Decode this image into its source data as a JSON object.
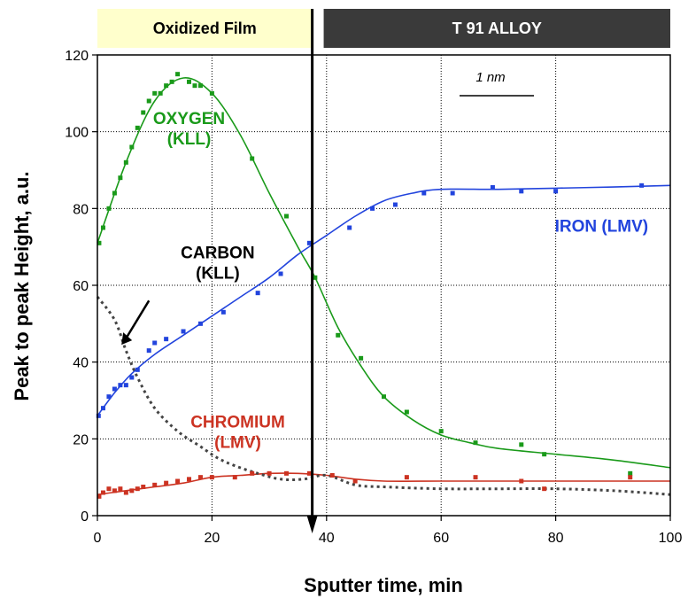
{
  "chart_data": {
    "type": "line",
    "xlabel": "Sputter time, min",
    "ylabel": "Peak to peak Height, a.u.",
    "xlim": [
      0,
      100
    ],
    "ylim": [
      0,
      120
    ],
    "x_ticks": [
      "0",
      "20",
      "40",
      "60",
      "80",
      "100"
    ],
    "y_ticks": [
      "0",
      "20",
      "40",
      "60",
      "80",
      "100",
      "120"
    ],
    "grid": true,
    "regions": [
      {
        "label": "Oxidized Film",
        "x_range": [
          0,
          37.5
        ],
        "fill": "#ffffcc",
        "text_color": "#000000"
      },
      {
        "label": "T 91 ALLOY",
        "x_range": [
          39.5,
          100
        ],
        "fill": "#3a3a3a",
        "text_color": "#ffffff"
      }
    ],
    "interface_line_x": 37.5,
    "scale_bar": {
      "label": "1 nm"
    },
    "series": [
      {
        "name": "OXYGEN (KLL)",
        "label_lines": [
          "OXYGEN",
          "(KLL)"
        ],
        "color": "#1a9a1a",
        "points": [
          [
            0.3,
            71
          ],
          [
            1,
            75
          ],
          [
            2,
            80
          ],
          [
            3,
            84
          ],
          [
            4,
            88
          ],
          [
            5,
            92
          ],
          [
            6,
            96
          ],
          [
            7,
            101
          ],
          [
            8,
            105
          ],
          [
            9,
            108
          ],
          [
            10,
            110
          ],
          [
            11,
            110
          ],
          [
            12,
            112
          ],
          [
            13,
            113
          ],
          [
            14,
            115
          ],
          [
            16,
            113
          ],
          [
            17,
            112
          ],
          [
            18,
            112
          ],
          [
            20,
            110
          ],
          [
            27,
            93
          ],
          [
            33,
            78
          ],
          [
            38,
            62
          ],
          [
            42,
            47
          ],
          [
            46,
            41
          ],
          [
            50,
            31
          ],
          [
            54,
            27
          ],
          [
            60,
            22
          ],
          [
            66,
            19
          ],
          [
            74,
            18.5
          ],
          [
            78,
            16
          ],
          [
            93,
            11
          ]
        ],
        "curve": [
          [
            0,
            71
          ],
          [
            5,
            92
          ],
          [
            10,
            108
          ],
          [
            15,
            114
          ],
          [
            20,
            110
          ],
          [
            25,
            99
          ],
          [
            30,
            84
          ],
          [
            35,
            70
          ],
          [
            38,
            62
          ],
          [
            42,
            49
          ],
          [
            46,
            39
          ],
          [
            50,
            31
          ],
          [
            55,
            25
          ],
          [
            60,
            21
          ],
          [
            65,
            19
          ],
          [
            70,
            17.5
          ],
          [
            80,
            16
          ],
          [
            90,
            14.5
          ],
          [
            100,
            12.5
          ]
        ]
      },
      {
        "name": "IRON (LMV)",
        "label_lines": [
          "IRON (LMV)"
        ],
        "color": "#2244dd",
        "points": [
          [
            0.2,
            26
          ],
          [
            1,
            28
          ],
          [
            2,
            31
          ],
          [
            3,
            33
          ],
          [
            4,
            34
          ],
          [
            5,
            34
          ],
          [
            6,
            36
          ],
          [
            7,
            38
          ],
          [
            9,
            43
          ],
          [
            10,
            45
          ],
          [
            12,
            46
          ],
          [
            15,
            48
          ],
          [
            18,
            50
          ],
          [
            22,
            53
          ],
          [
            28,
            58
          ],
          [
            32,
            63
          ],
          [
            37,
            71
          ],
          [
            44,
            75
          ],
          [
            48,
            80
          ],
          [
            52,
            81
          ],
          [
            57,
            84
          ],
          [
            62,
            84
          ],
          [
            69,
            85.5
          ],
          [
            74,
            84.5
          ],
          [
            80,
            84.5
          ],
          [
            95,
            86
          ]
        ],
        "curve": [
          [
            0,
            26
          ],
          [
            3,
            32
          ],
          [
            6,
            37
          ],
          [
            10,
            42
          ],
          [
            15,
            47
          ],
          [
            20,
            52
          ],
          [
            25,
            57
          ],
          [
            30,
            62
          ],
          [
            35,
            68
          ],
          [
            40,
            73
          ],
          [
            45,
            78
          ],
          [
            50,
            82
          ],
          [
            55,
            84
          ],
          [
            60,
            85
          ],
          [
            70,
            85
          ],
          [
            80,
            85.3
          ],
          [
            90,
            85.6
          ],
          [
            100,
            86
          ]
        ]
      },
      {
        "name": "CHROMIUM (LMV)",
        "label_lines": [
          "CHROMIUM",
          "(LMV)"
        ],
        "color": "#cc3322",
        "points": [
          [
            0.3,
            5
          ],
          [
            1,
            6
          ],
          [
            2,
            7
          ],
          [
            3,
            6.5
          ],
          [
            4,
            7
          ],
          [
            5,
            6
          ],
          [
            6,
            6.5
          ],
          [
            7,
            7
          ],
          [
            8,
            7.5
          ],
          [
            10,
            8
          ],
          [
            12,
            8.5
          ],
          [
            14,
            9
          ],
          [
            16,
            9.5
          ],
          [
            18,
            10
          ],
          [
            20,
            10
          ],
          [
            24,
            10
          ],
          [
            27,
            11
          ],
          [
            30,
            11
          ],
          [
            33,
            11
          ],
          [
            37,
            11
          ],
          [
            41,
            10.5
          ],
          [
            45,
            9
          ],
          [
            54,
            10
          ],
          [
            66,
            10
          ],
          [
            74,
            9
          ],
          [
            78,
            7
          ],
          [
            93,
            10
          ]
        ],
        "curve": [
          [
            0,
            5.5
          ],
          [
            5,
            6.5
          ],
          [
            10,
            7.5
          ],
          [
            15,
            8.5
          ],
          [
            20,
            10
          ],
          [
            25,
            10.5
          ],
          [
            30,
            11
          ],
          [
            35,
            11
          ],
          [
            40,
            10.5
          ],
          [
            45,
            9.5
          ],
          [
            50,
            9
          ],
          [
            60,
            9
          ],
          [
            70,
            9
          ],
          [
            80,
            9
          ],
          [
            90,
            9
          ],
          [
            100,
            9
          ]
        ]
      },
      {
        "name": "CARBON (KLL)",
        "label_lines": [
          "CARBON",
          "(KLL)"
        ],
        "color": "#444444",
        "dashed": true,
        "curve": [
          [
            0,
            57
          ],
          [
            3,
            51
          ],
          [
            5,
            43
          ],
          [
            7,
            36
          ],
          [
            10,
            28
          ],
          [
            14,
            22
          ],
          [
            18,
            18
          ],
          [
            21,
            15
          ],
          [
            24,
            13
          ],
          [
            28,
            11
          ],
          [
            32,
            9.5
          ],
          [
            36,
            9.5
          ],
          [
            40,
            10.5
          ],
          [
            45,
            8
          ],
          [
            50,
            7.5
          ],
          [
            60,
            7
          ],
          [
            70,
            7
          ],
          [
            80,
            7
          ],
          [
            90,
            6.5
          ],
          [
            100,
            5.5
          ]
        ]
      }
    ]
  }
}
